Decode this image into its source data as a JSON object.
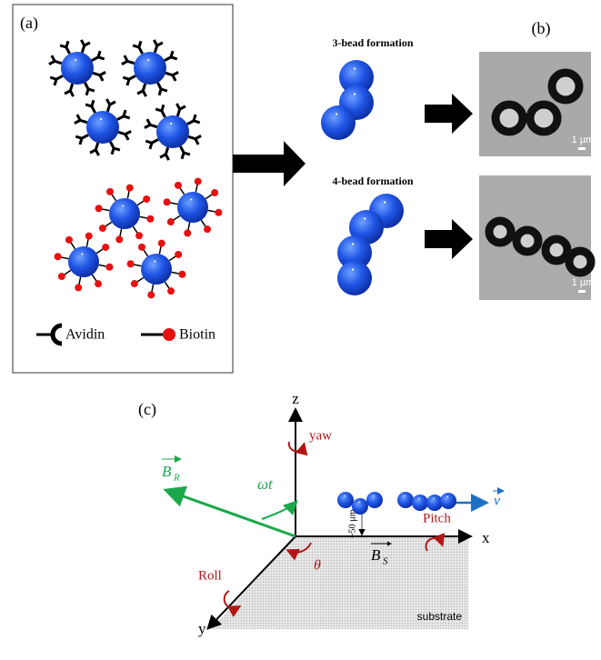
{
  "panel_a": {
    "label": "(a)",
    "legend": {
      "avidin": "Avidin",
      "biotin": "Biotin"
    }
  },
  "panel_b": {
    "label": "(b)",
    "three_bead": "3-bead formation",
    "four_bead": "4-bead formation",
    "scale_bars": [
      "1 µm",
      "1 µm"
    ]
  },
  "panel_c": {
    "label": "(c)",
    "axes": {
      "x": "x",
      "y": "y",
      "z": "z"
    },
    "yaw": "yaw",
    "pitch": "Pitch",
    "roll": "Roll",
    "b_r": {
      "symbol": "B",
      "subscript": "R"
    },
    "b_s": {
      "symbol": "B",
      "subscript": "S"
    },
    "omega_t": "ωt",
    "theta": "θ",
    "velocity": "v",
    "height": "~50 µm",
    "substrate": "substrate"
  }
}
